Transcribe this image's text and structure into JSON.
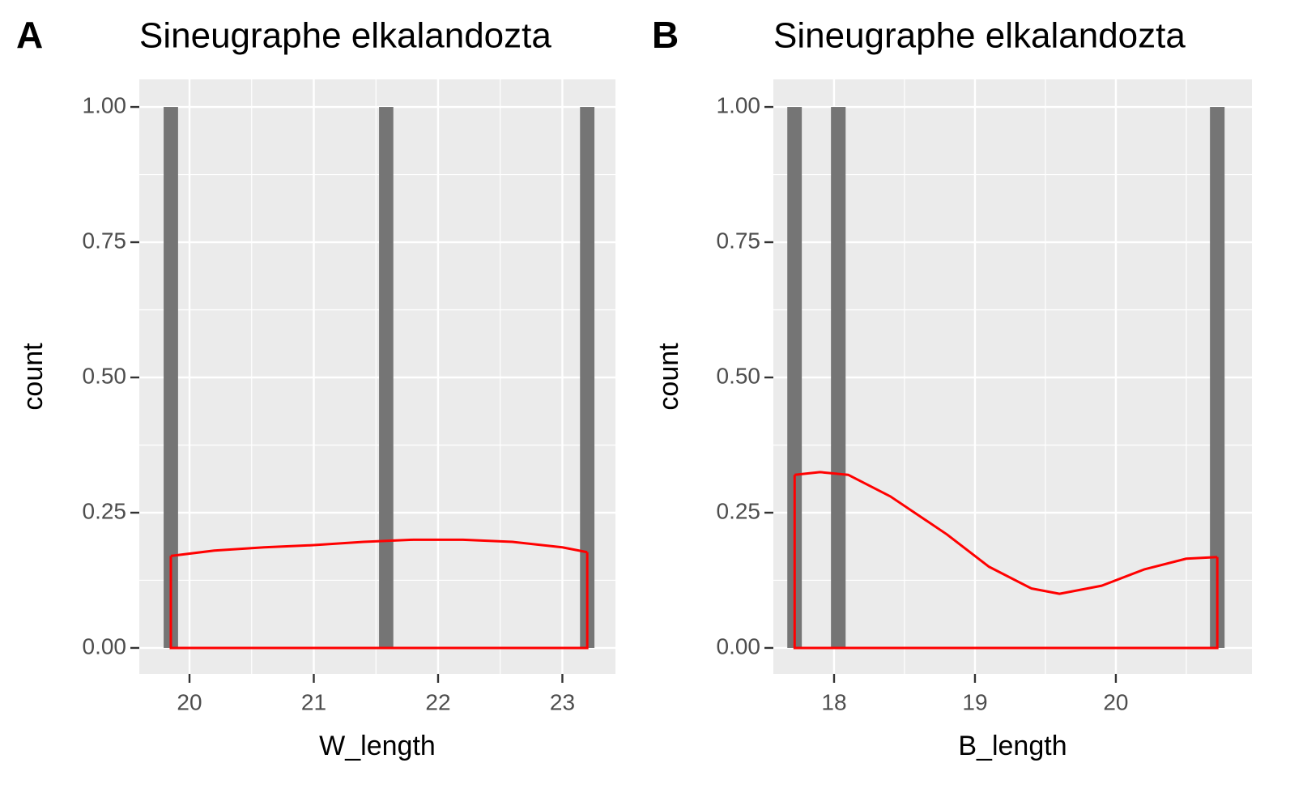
{
  "chart_data": [
    {
      "type": "histogram",
      "tag": "A",
      "title": "Sineugraphe elkalandozta",
      "xlabel": "W_length",
      "ylabel": "count",
      "bins": [
        19.792,
        19.908,
        20.023,
        20.139,
        20.254,
        20.37,
        20.485,
        20.601,
        20.716,
        20.832,
        20.947,
        21.063,
        21.178,
        21.294,
        21.409,
        21.525,
        21.64,
        21.756,
        21.871,
        21.987,
        22.102,
        22.218,
        22.333,
        22.449,
        22.564,
        22.68,
        22.796,
        22.911,
        23.027,
        23.142,
        23.258
      ],
      "counts": [
        1,
        0,
        0,
        0,
        0,
        0,
        0,
        0,
        0,
        0,
        0,
        0,
        0,
        0,
        0,
        1,
        0,
        0,
        0,
        0,
        0,
        0,
        0,
        0,
        0,
        0,
        0,
        0,
        0,
        1
      ],
      "color": "#757575",
      "density": {
        "x": [
          19.85,
          20.2,
          20.6,
          21.0,
          21.4,
          21.8,
          22.2,
          22.6,
          23.0,
          23.2
        ],
        "values": [
          0.17,
          0.18,
          0.186,
          0.19,
          0.196,
          0.2,
          0.2,
          0.196,
          0.186,
          0.177
        ],
        "color": "#ff0000"
      },
      "xlim": [
        19.596,
        23.427
      ],
      "xticks": [
        20,
        21,
        22,
        23
      ],
      "ylim": [
        -0.048,
        1.051
      ],
      "yticks": [
        {
          "value": 0,
          "label": "0.00"
        },
        {
          "value": 0.25,
          "label": "0.25"
        },
        {
          "value": 0.5,
          "label": "0.50"
        },
        {
          "value": 0.75,
          "label": "0.75"
        },
        {
          "value": 1,
          "label": "1.00"
        }
      ],
      "grid": true
    },
    {
      "type": "histogram",
      "tag": "B",
      "title": "Sineugraphe elkalandozta",
      "xlabel": "B_length",
      "ylabel": "count",
      "bins": [
        17.668,
        17.771,
        17.875,
        17.978,
        18.082,
        18.185,
        18.289,
        18.392,
        18.496,
        18.599,
        18.703,
        18.806,
        18.909,
        19.013,
        19.116,
        19.22,
        19.323,
        19.427,
        19.53,
        19.634,
        19.737,
        19.841,
        19.944,
        20.048,
        20.151,
        20.255,
        20.358,
        20.461,
        20.565,
        20.668,
        20.772
      ],
      "counts": [
        1,
        0,
        0,
        1,
        0,
        0,
        0,
        0,
        0,
        0,
        0,
        0,
        0,
        0,
        0,
        0,
        0,
        0,
        0,
        0,
        0,
        0,
        0,
        0,
        0,
        0,
        0,
        0,
        0,
        1
      ],
      "color": "#757575",
      "density": {
        "x": [
          17.72,
          17.9,
          18.1,
          18.4,
          18.8,
          19.1,
          19.4,
          19.6,
          19.9,
          20.2,
          20.5,
          20.72
        ],
        "values": [
          0.32,
          0.325,
          0.32,
          0.28,
          0.21,
          0.15,
          0.11,
          0.1,
          0.115,
          0.145,
          0.165,
          0.168
        ],
        "color": "#ff0000"
      },
      "xlim": [
        17.569,
        20.966
      ],
      "xticks": [
        18,
        19,
        20
      ],
      "ylim": [
        -0.048,
        1.051
      ],
      "yticks": [
        {
          "value": 0,
          "label": "0.00"
        },
        {
          "value": 0.25,
          "label": "0.25"
        },
        {
          "value": 0.5,
          "label": "0.50"
        },
        {
          "value": 0.75,
          "label": "0.75"
        },
        {
          "value": 1,
          "label": "1.00"
        }
      ],
      "grid": true
    }
  ]
}
